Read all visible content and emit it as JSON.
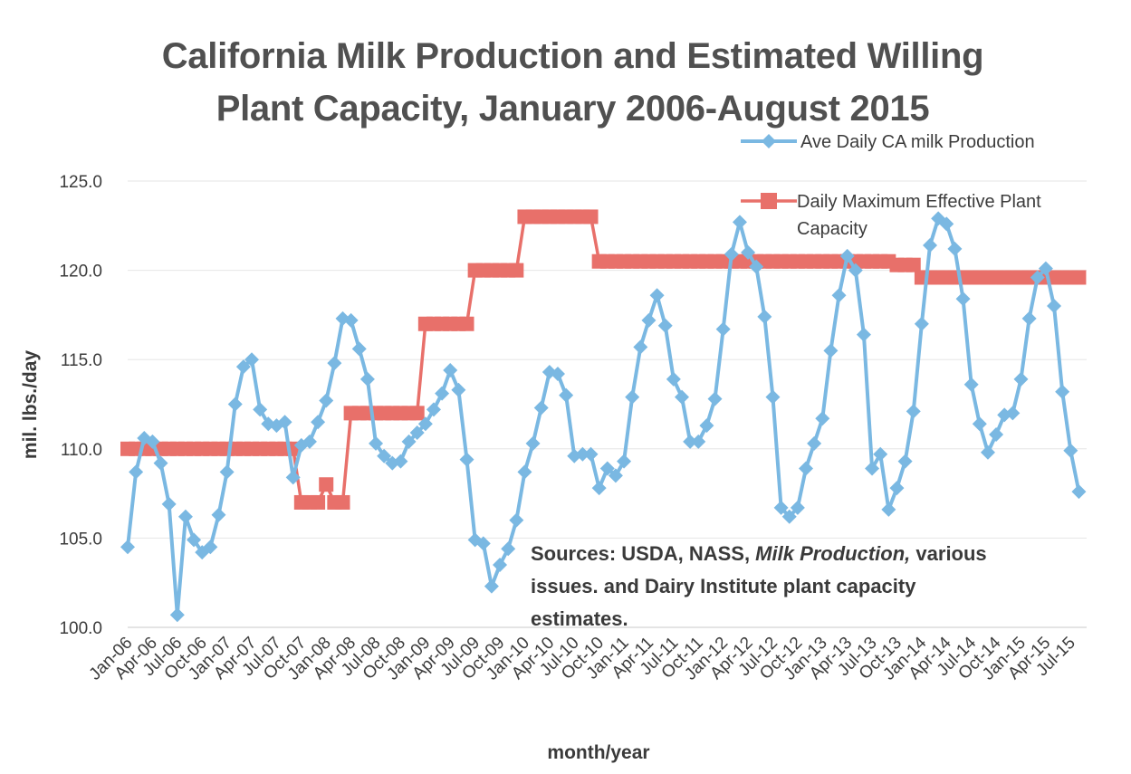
{
  "chart_data": {
    "type": "line",
    "title_line1": "California Milk Production and Estimated Willing",
    "title_line2": "Plant Capacity, January 2006-August 2015",
    "xlabel": "month/year",
    "ylabel": "mil. lbs./day",
    "ylim": [
      100.0,
      125.0
    ],
    "yticks": [
      "100.0",
      "105.0",
      "110.0",
      "115.0",
      "120.0",
      "125.0"
    ],
    "xticks": [
      "Jan-06",
      "Apr-06",
      "Jul-06",
      "Oct-06",
      "Jan-07",
      "Apr-07",
      "Jul-07",
      "Oct-07",
      "Jan-08",
      "Apr-08",
      "Jul-08",
      "Oct-08",
      "Jan-09",
      "Apr-09",
      "Jul-09",
      "Oct-09",
      "Jan-10",
      "Apr-10",
      "Jul-10",
      "Oct-10",
      "Jan-11",
      "Apr-11",
      "Jul-11",
      "Oct-11",
      "Jan-12",
      "Apr-12",
      "Jul-12",
      "Oct-12",
      "Jan-13",
      "Apr-13",
      "Jul-13",
      "Oct-13",
      "Jan-14",
      "Apr-14",
      "Jul-14",
      "Oct-14",
      "Jan-15",
      "Apr-15",
      "Jul-15"
    ],
    "x_start": "Jan-06",
    "x_end": "Aug-15",
    "series": [
      {
        "name": "Ave Daily CA milk Production",
        "color": "#7ab8e2",
        "marker": "diamond",
        "values": [
          104.5,
          108.7,
          110.6,
          110.4,
          109.2,
          106.9,
          100.7,
          106.2,
          104.9,
          104.2,
          104.5,
          106.3,
          108.7,
          112.5,
          114.6,
          115.0,
          112.2,
          111.4,
          111.3,
          111.5,
          108.4,
          110.2,
          110.4,
          111.5,
          112.7,
          114.8,
          117.3,
          117.2,
          115.6,
          113.9,
          110.3,
          109.6,
          109.2,
          109.3,
          110.4,
          110.9,
          111.4,
          112.2,
          113.1,
          114.4,
          113.3,
          109.4,
          104.9,
          104.7,
          102.3,
          103.5,
          104.4,
          106.0,
          108.7,
          110.3,
          112.3,
          114.3,
          114.2,
          113.0,
          109.6,
          109.7,
          109.7,
          107.8,
          108.9,
          108.5,
          109.3,
          112.9,
          115.7,
          117.2,
          118.6,
          116.9,
          113.9,
          112.9,
          110.4,
          110.4,
          111.3,
          112.8,
          116.7,
          120.9,
          122.7,
          121.0,
          120.2,
          117.4,
          112.9,
          106.7,
          106.2,
          106.7,
          108.9,
          110.3,
          111.7,
          115.5,
          118.6,
          120.8,
          120.0,
          116.4,
          108.9,
          109.7,
          106.6,
          107.8,
          109.3,
          112.1,
          117.0,
          121.4,
          122.9,
          122.6,
          121.2,
          118.4,
          113.6,
          111.4,
          109.8,
          110.8,
          111.9,
          112.0,
          113.9,
          117.3,
          119.6,
          120.1,
          118.0,
          113.2,
          109.9,
          107.6
        ]
      },
      {
        "name": "Daily Maximum Effective Plant Capacity",
        "color": "#e8706a",
        "marker": "square",
        "segments": [
          {
            "start": "Jan-06",
            "end": "Sep-07",
            "value": 110.0
          },
          {
            "start": "Oct-07",
            "end": "Dec-07",
            "value": 107.0
          },
          {
            "start": "Jan-08",
            "end": "Jan-08",
            "value": 108.0
          },
          {
            "start": "Feb-08",
            "end": "Mar-08",
            "value": 107.0
          },
          {
            "start": "Apr-08",
            "end": "Dec-08",
            "value": 112.0
          },
          {
            "start": "Jan-09",
            "end": "Jun-09",
            "value": 117.0
          },
          {
            "start": "Jul-09",
            "end": "Dec-09",
            "value": 120.0
          },
          {
            "start": "Jan-10",
            "end": "Sep-10",
            "value": 123.0
          },
          {
            "start": "Oct-10",
            "end": "Sep-13",
            "value": 120.5
          },
          {
            "start": "Oct-13",
            "end": "Dec-13",
            "value": 120.3
          },
          {
            "start": "Jan-14",
            "end": "Aug-15",
            "value": 119.6
          }
        ]
      }
    ],
    "legend_position": "top-right",
    "grid": true,
    "annotation": {
      "line1_prefix": "Sources:  USDA, NASS, ",
      "line1_italic": "Milk Production,",
      "line1_suffix": " various",
      "line2": "issues. and Dairy Institute plant capacity",
      "line3": "estimates."
    }
  }
}
